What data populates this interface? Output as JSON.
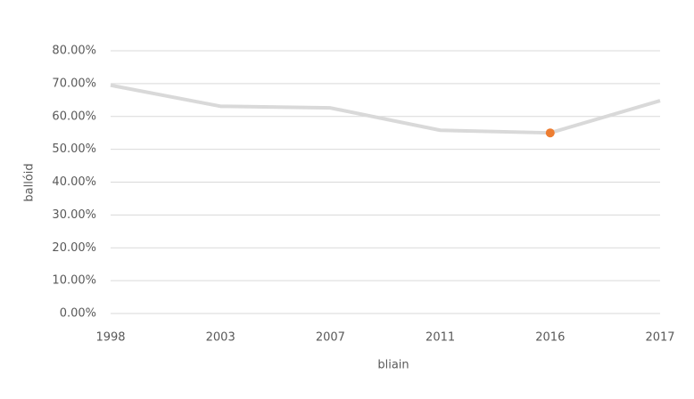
{
  "chart_data": {
    "type": "line",
    "categories": [
      "1998",
      "2003",
      "2007",
      "2011",
      "2016",
      "2017"
    ],
    "values": [
      69.5,
      63.1,
      62.6,
      55.8,
      55.0,
      64.8
    ],
    "color": "#d9d9d9",
    "highlight_index": 4,
    "highlight_color": "#ed7d31",
    "x_label": "bliain",
    "y_label": "ballóid",
    "ylim": [
      0,
      80
    ],
    "yticks": [
      {
        "value": 0,
        "label": "0.00%"
      },
      {
        "value": 10,
        "label": "10.00%"
      },
      {
        "value": 20,
        "label": "20.00%"
      },
      {
        "value": 30,
        "label": "30.00%"
      },
      {
        "value": 40,
        "label": "40.00%"
      },
      {
        "value": 50,
        "label": "50.00%"
      },
      {
        "value": 60,
        "label": "60.00%"
      },
      {
        "value": 70,
        "label": "70.00%"
      },
      {
        "value": 80,
        "label": "80.00%"
      }
    ],
    "grid": true
  }
}
